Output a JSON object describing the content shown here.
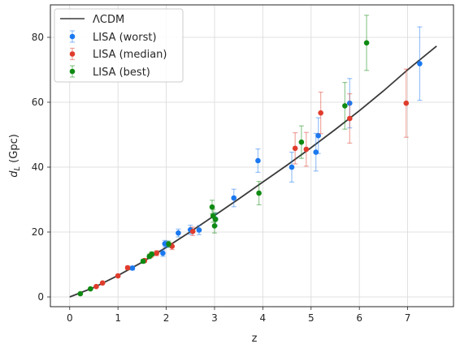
{
  "chart_data": {
    "type": "scatter",
    "xlabel": "z",
    "ylabel": "d_L (Gpc)",
    "xlim": [
      -0.4,
      7.95
    ],
    "ylim": [
      -3,
      90
    ],
    "xticks": [
      0,
      1,
      2,
      3,
      4,
      5,
      6,
      7
    ],
    "yticks": [
      0,
      20,
      40,
      60,
      80
    ],
    "grid": true,
    "legend_position": "top-left",
    "model_line": {
      "name": "ΛCDM",
      "color": "#3a3a3a",
      "x": [
        0,
        0.5,
        1,
        1.5,
        2,
        2.5,
        3,
        3.5,
        4,
        4.5,
        5,
        5.5,
        6,
        6.5,
        7,
        7.6
      ],
      "y": [
        0,
        2.9,
        6.6,
        10.7,
        15.3,
        20.1,
        25.1,
        30.2,
        35.4,
        40.6,
        46.0,
        51.6,
        57.4,
        63.5,
        70.0,
        77.3
      ]
    },
    "series": [
      {
        "name": "LISA (worst)",
        "color": "#1a78f0",
        "points": [
          {
            "x": 1.3,
            "y": 8.9,
            "err": 0.6
          },
          {
            "x": 1.93,
            "y": 13.5,
            "err": 1.0
          },
          {
            "x": 1.97,
            "y": 16.4,
            "err": 1.0
          },
          {
            "x": 2.02,
            "y": 16.2,
            "err": 1.0
          },
          {
            "x": 2.25,
            "y": 19.7,
            "err": 1.2
          },
          {
            "x": 2.5,
            "y": 20.7,
            "err": 1.4
          },
          {
            "x": 2.68,
            "y": 20.6,
            "err": 1.4
          },
          {
            "x": 3.02,
            "y": 24.0,
            "err": 1.8
          },
          {
            "x": 3.4,
            "y": 30.5,
            "err": 2.7
          },
          {
            "x": 3.9,
            "y": 42.0,
            "err": 3.6
          },
          {
            "x": 4.6,
            "y": 40.0,
            "err": 4.6
          },
          {
            "x": 5.1,
            "y": 44.6,
            "err": 5.8
          },
          {
            "x": 5.15,
            "y": 49.7,
            "err": 5.5
          },
          {
            "x": 5.8,
            "y": 59.7,
            "err": 7.6
          },
          {
            "x": 7.25,
            "y": 71.9,
            "err": 11.3
          }
        ]
      },
      {
        "name": "LISA (median)",
        "color": "#e03c2c",
        "points": [
          {
            "x": 0.55,
            "y": 3.2,
            "err": 0.3
          },
          {
            "x": 0.68,
            "y": 4.3,
            "err": 0.3
          },
          {
            "x": 1.0,
            "y": 6.5,
            "err": 0.4
          },
          {
            "x": 1.2,
            "y": 9.0,
            "err": 0.5
          },
          {
            "x": 1.55,
            "y": 11.2,
            "err": 0.6
          },
          {
            "x": 1.68,
            "y": 12.8,
            "err": 0.7
          },
          {
            "x": 1.8,
            "y": 13.5,
            "err": 0.8
          },
          {
            "x": 2.12,
            "y": 15.6,
            "err": 1.0
          },
          {
            "x": 2.55,
            "y": 20.2,
            "err": 1.3
          },
          {
            "x": 4.67,
            "y": 45.8,
            "err": 4.8
          },
          {
            "x": 4.9,
            "y": 45.5,
            "err": 5.2
          },
          {
            "x": 5.2,
            "y": 56.7,
            "err": 6.4
          },
          {
            "x": 5.8,
            "y": 55.0,
            "err": 7.6
          },
          {
            "x": 6.97,
            "y": 59.7,
            "err": 10.5
          }
        ]
      },
      {
        "name": "LISA (best)",
        "color": "#0f8a12",
        "points": [
          {
            "x": 0.22,
            "y": 1.0,
            "err": 0.1
          },
          {
            "x": 0.43,
            "y": 2.5,
            "err": 0.2
          },
          {
            "x": 1.52,
            "y": 11.0,
            "err": 0.6
          },
          {
            "x": 1.65,
            "y": 12.5,
            "err": 0.7
          },
          {
            "x": 1.7,
            "y": 13.2,
            "err": 0.7
          },
          {
            "x": 2.05,
            "y": 16.3,
            "err": 0.9
          },
          {
            "x": 2.95,
            "y": 27.7,
            "err": 2.1
          },
          {
            "x": 2.97,
            "y": 25.0,
            "err": 2.0
          },
          {
            "x": 3.0,
            "y": 21.9,
            "err": 2.2
          },
          {
            "x": 3.02,
            "y": 23.9,
            "err": 2.1
          },
          {
            "x": 3.92,
            "y": 32.0,
            "err": 3.6
          },
          {
            "x": 4.8,
            "y": 47.7,
            "err": 5.0
          },
          {
            "x": 5.7,
            "y": 58.9,
            "err": 7.2
          },
          {
            "x": 6.15,
            "y": 78.3,
            "err": 8.5
          }
        ]
      }
    ]
  }
}
